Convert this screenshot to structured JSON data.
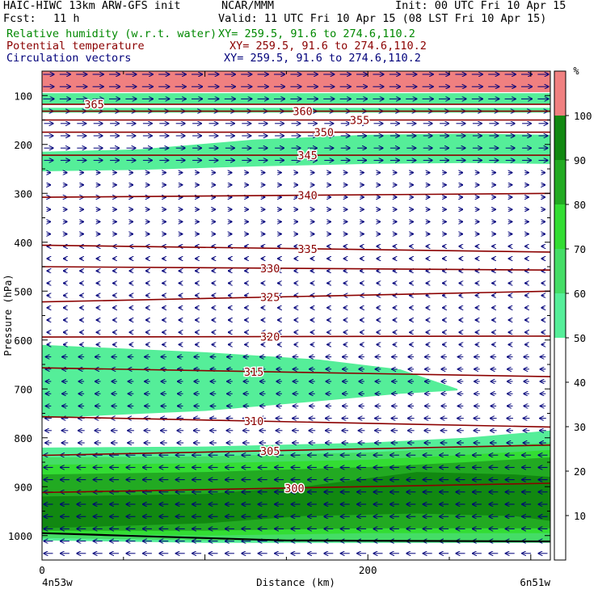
{
  "header": {
    "model": "HAIC-HIWC 13km ARW-GFS init",
    "org": "NCAR/MMM",
    "init": "Init: 00 UTC Fri 10 Apr 15",
    "fcst_label": "Fcst:",
    "fcst_value": "11 h",
    "valid": "Valid: 11 UTC Fri 10 Apr 15 (08 LST Fri 10 Apr 15)",
    "fields": [
      {
        "name": "Relative humidity (w.r.t. water)",
        "xy": "XY= 259.5, 91.6 to 274.6,110.2",
        "color": "#008800"
      },
      {
        "name": "Potential temperature",
        "xy": "XY= 259.5, 91.6 to 274.6,110.2",
        "color": "#8b0000"
      },
      {
        "name": "Circulation vectors",
        "xy": "XY= 259.5, 91.6 to 274.6,110.2",
        "color": "#00007a"
      }
    ]
  },
  "chart_data": {
    "type": "heatmap",
    "xlabel": "Distance (km)",
    "ylabel": "Pressure (hPa)",
    "x_ticks": [
      0,
      200
    ],
    "x_range": [
      0,
      312
    ],
    "y_ticks": [
      100,
      200,
      300,
      400,
      500,
      600,
      700,
      800,
      900,
      1000
    ],
    "y_range": [
      50,
      1050
    ],
    "y_scale": "linear",
    "endpoint_labels": {
      "left": "4n53w",
      "right": "6n51w"
    },
    "colorbar": {
      "unit": "%",
      "ticks": [
        10,
        20,
        30,
        40,
        50,
        60,
        70,
        80,
        90,
        100
      ],
      "bins": [
        {
          "from": 50,
          "to": 60,
          "color": "#55ee99"
        },
        {
          "from": 60,
          "to": 70,
          "color": "#44dd66"
        },
        {
          "from": 70,
          "to": 80,
          "color": "#33dd33"
        },
        {
          "from": 80,
          "to": 90,
          "color": "#22aa22"
        },
        {
          "from": 90,
          "to": 100,
          "color": "#118811"
        },
        {
          "from": 100,
          "to": 110,
          "color": "#f08080"
        }
      ]
    },
    "rh_bands": [
      {
        "value": 105,
        "x": [
          0,
          312
        ],
        "top": [
          50,
          50
        ],
        "bottom": [
          93,
          93
        ]
      },
      {
        "value": 55,
        "x": [
          0,
          312
        ],
        "top": [
          95,
          95
        ],
        "bottom": [
          118,
          118
        ]
      },
      {
        "value": 55,
        "x": [
          0,
          312
        ],
        "top": [
          125,
          125
        ],
        "bottom": [
          135,
          135
        ]
      },
      {
        "value": 55,
        "x": [
          0,
          60,
          130,
          200,
          260,
          312
        ],
        "top": [
          215,
          210,
          190,
          180,
          178,
          180
        ],
        "bottom": [
          255,
          252,
          245,
          240,
          238,
          240
        ]
      },
      {
        "value": 55,
        "x": [
          0,
          100,
          170,
          220,
          255,
          255,
          200,
          100,
          0
        ],
        "top": [
          610,
          625,
          640,
          660,
          700,
          700,
          700,
          700,
          700
        ],
        "bottom": [
          760,
          745,
          725,
          710,
          703,
          700,
          700,
          700,
          700
        ]
      },
      {
        "value": 55,
        "x": [
          0,
          100,
          200,
          260,
          312
        ],
        "top": [
          820,
          818,
          810,
          800,
          785
        ],
        "bottom": [
          1010,
          1015,
          1015,
          1015,
          1015
        ]
      },
      {
        "value": 65,
        "x": [
          0,
          100,
          200,
          260,
          312
        ],
        "top": [
          840,
          838,
          830,
          820,
          810
        ],
        "bottom": [
          1005,
          1010,
          1010,
          1010,
          1010
        ]
      },
      {
        "value": 75,
        "x": [
          0,
          100,
          200,
          260,
          312
        ],
        "top": [
          855,
          852,
          845,
          835,
          825
        ],
        "bottom": [
          995,
          1000,
          995,
          995,
          995
        ]
      },
      {
        "value": 85,
        "x": [
          0,
          100,
          200,
          260,
          312
        ],
        "top": [
          875,
          870,
          860,
          850,
          840
        ],
        "bottom": [
          990,
          990,
          985,
          985,
          985
        ]
      },
      {
        "value": 95,
        "x": [
          0,
          100,
          160,
          230,
          290,
          312
        ],
        "top": [
          920,
          915,
          900,
          870,
          875,
          880
        ],
        "bottom": [
          985,
          975,
          960,
          955,
          960,
          970
        ]
      }
    ],
    "theta_contours": [
      {
        "value": 365,
        "x": [
          0,
          312
        ],
        "p": [
          118,
          118
        ],
        "label_x": 32
      },
      {
        "value": 360,
        "x": [
          0,
          312
        ],
        "p": [
          132,
          132
        ],
        "label_x": 160
      },
      {
        "value": 355,
        "x": [
          0,
          312
        ],
        "p": [
          150,
          150
        ],
        "label_x": 195
      },
      {
        "value": 350,
        "x": [
          0,
          312
        ],
        "p": [
          175,
          175
        ],
        "label_x": 173
      },
      {
        "value": 345,
        "x": [
          0,
          312
        ],
        "p": [
          222,
          222
        ],
        "label_x": 163
      },
      {
        "value": 340,
        "x": [
          0,
          312
        ],
        "p": [
          308,
          300
        ],
        "label_x": 163
      },
      {
        "value": 335,
        "x": [
          0,
          312
        ],
        "p": [
          406,
          420
        ],
        "label_x": 163
      },
      {
        "value": 330,
        "x": [
          0,
          312
        ],
        "p": [
          450,
          457
        ],
        "label_x": 140
      },
      {
        "value": 325,
        "x": [
          0,
          312
        ],
        "p": [
          522,
          500
        ],
        "label_x": 140
      },
      {
        "value": 320,
        "x": [
          0,
          312
        ],
        "p": [
          594,
          592
        ],
        "label_x": 140
      },
      {
        "value": 315,
        "x": [
          0,
          312
        ],
        "p": [
          657,
          675
        ],
        "label_x": 130
      },
      {
        "value": 310,
        "x": [
          0,
          312
        ],
        "p": [
          757,
          778
        ],
        "label_x": 130
      },
      {
        "value": 305,
        "x": [
          0,
          312
        ],
        "p": [
          836,
          815
        ],
        "label_x": 140
      },
      {
        "value": 300,
        "x": [
          0,
          312
        ],
        "p": [
          912,
          893
        ],
        "label_x": 155
      }
    ],
    "terrain": {
      "x": [
        0,
        50,
        100,
        150,
        312
      ],
      "p": [
        995,
        1000,
        1005,
        1010,
        1012
      ]
    },
    "vectors": [
      {
        "p_from": 50,
        "p_to": 130,
        "u": 6,
        "w": 0
      },
      {
        "p_from": 130,
        "p_to": 250,
        "u": 5,
        "w": 0
      },
      {
        "p_from": 250,
        "p_to": 400,
        "u": 2,
        "w": 0
      },
      {
        "p_from": 400,
        "p_to": 620,
        "u": -1.5,
        "w": 0
      },
      {
        "p_from": 620,
        "p_to": 740,
        "u": -3,
        "w": 0
      },
      {
        "p_from": 740,
        "p_to": 820,
        "u": -3.5,
        "w": 0
      },
      {
        "p_from": 820,
        "p_to": 1050,
        "u": -5,
        "w": 0
      }
    ]
  }
}
